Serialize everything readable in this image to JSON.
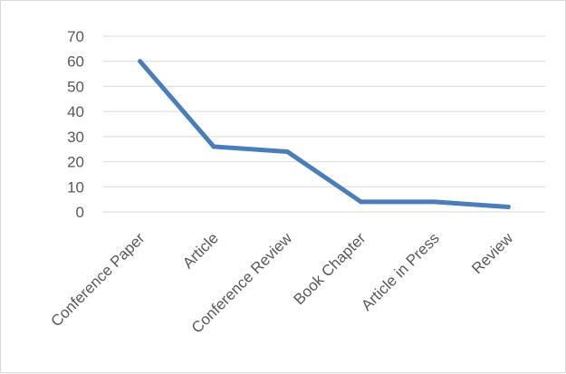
{
  "chart_data": {
    "type": "line",
    "title": "",
    "xlabel": "",
    "ylabel": "",
    "categories": [
      "Conference Paper",
      "Article",
      "Conference Review",
      "Book Chapter",
      "Article in Press",
      "Review"
    ],
    "series": [
      {
        "values": [
          60,
          26,
          24,
          4,
          4,
          2
        ]
      }
    ],
    "ylim": [
      0,
      70
    ],
    "yticks": [
      0,
      10,
      20,
      30,
      40,
      50,
      60,
      70
    ],
    "grid": true,
    "legend": "none",
    "colors": {
      "series": "#4a7ebb",
      "grid": "#d9d9d9",
      "text": "#595959"
    }
  }
}
